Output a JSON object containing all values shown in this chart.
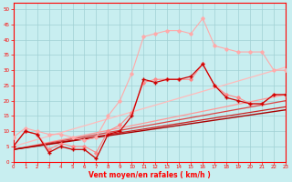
{
  "xlabel": "Vent moyen/en rafales ( km/h )",
  "background_color": "#c8eef0",
  "grid_color": "#a0d0d4",
  "x_ticks": [
    0,
    1,
    2,
    3,
    4,
    5,
    6,
    7,
    8,
    9,
    10,
    11,
    12,
    13,
    14,
    15,
    16,
    17,
    18,
    19,
    20,
    21,
    22,
    23
  ],
  "y_ticks": [
    0,
    5,
    10,
    15,
    20,
    25,
    30,
    35,
    40,
    45,
    50
  ],
  "ylim": [
    0,
    52
  ],
  "xlim": [
    0,
    23
  ],
  "lines": [
    {
      "color": "#ffaaaa",
      "lw": 0.8,
      "marker": "D",
      "markersize": 1.8,
      "x": [
        0,
        1,
        2,
        3,
        4,
        5,
        6,
        7,
        8,
        9,
        10,
        11,
        12,
        13,
        14,
        15,
        16,
        17,
        18,
        19,
        20,
        21,
        22,
        23
      ],
      "y": [
        8,
        11,
        10,
        9,
        9,
        8,
        7,
        8,
        15,
        20,
        29,
        41,
        42,
        43,
        43,
        42,
        47,
        38,
        37,
        36,
        36,
        36,
        30,
        30
      ]
    },
    {
      "color": "#ff8888",
      "lw": 0.8,
      "marker": "D",
      "markersize": 1.8,
      "x": [
        0,
        1,
        2,
        3,
        4,
        5,
        6,
        7,
        8,
        9,
        10,
        11,
        12,
        13,
        14,
        15,
        16,
        17,
        18,
        19,
        20,
        21,
        22,
        23
      ],
      "y": [
        5,
        10,
        9,
        4,
        6,
        5,
        5,
        3,
        10,
        12,
        16,
        26,
        27,
        27,
        27,
        27,
        32,
        25,
        22,
        21,
        19,
        19,
        22,
        22
      ]
    },
    {
      "color": "#cc0000",
      "lw": 0.9,
      "marker": "+",
      "markersize": 3,
      "x": [
        0,
        1,
        2,
        3,
        4,
        5,
        6,
        7,
        8,
        9,
        10,
        11,
        12,
        13,
        14,
        15,
        16,
        17,
        18,
        19,
        20,
        21,
        22,
        23
      ],
      "y": [
        5,
        10,
        9,
        3,
        5,
        4,
        4,
        1,
        9,
        10,
        15,
        27,
        26,
        27,
        27,
        28,
        32,
        25,
        21,
        20,
        19,
        19,
        22,
        22
      ]
    },
    {
      "color": "#ffbbbb",
      "lw": 0.9,
      "marker": null,
      "x": [
        0,
        23
      ],
      "y": [
        5,
        31
      ]
    },
    {
      "color": "#ff9999",
      "lw": 0.9,
      "marker": null,
      "x": [
        0,
        23
      ],
      "y": [
        4,
        22
      ]
    },
    {
      "color": "#dd4444",
      "lw": 0.9,
      "marker": null,
      "x": [
        0,
        23
      ],
      "y": [
        4,
        20
      ]
    },
    {
      "color": "#cc2222",
      "lw": 0.9,
      "marker": null,
      "x": [
        0,
        23
      ],
      "y": [
        4,
        18
      ]
    },
    {
      "color": "#aa0000",
      "lw": 1.0,
      "marker": null,
      "x": [
        0,
        23
      ],
      "y": [
        4,
        17
      ]
    }
  ]
}
